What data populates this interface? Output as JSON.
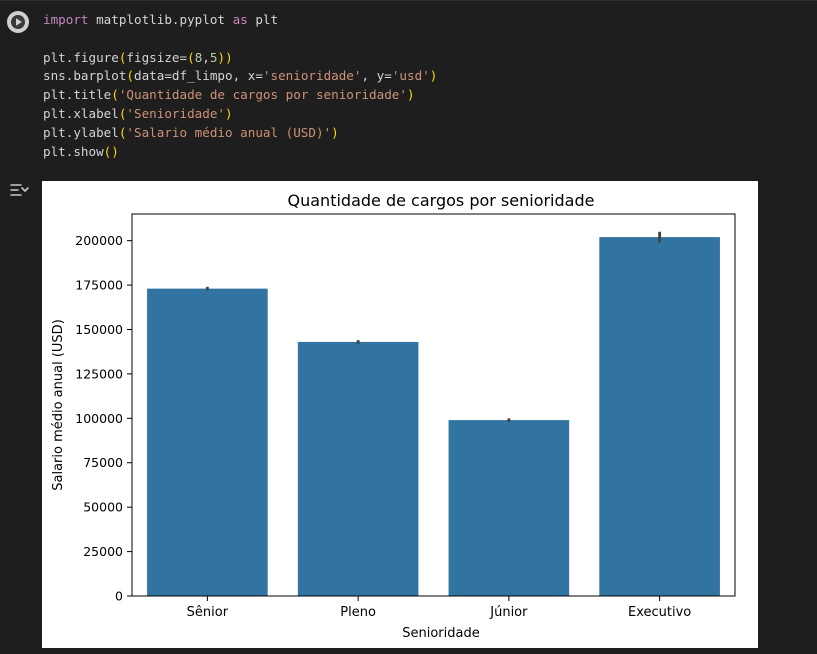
{
  "code_cell": {
    "lines": [
      [
        {
          "t": "import",
          "c": "kw"
        },
        {
          "t": " matplotlib.pyplot "
        },
        {
          "t": "as",
          "c": "kw"
        },
        {
          "t": " plt"
        }
      ],
      [],
      [
        {
          "t": "plt.figure"
        },
        {
          "t": "(",
          "c": "pn"
        },
        {
          "t": "figsize="
        },
        {
          "t": "(",
          "c": "pn"
        },
        {
          "t": "8",
          "c": "num"
        },
        {
          "t": ","
        },
        {
          "t": "5",
          "c": "num"
        },
        {
          "t": ")",
          "c": "pn"
        },
        {
          "t": ")",
          "c": "pn"
        }
      ],
      [
        {
          "t": "sns.barplot"
        },
        {
          "t": "(",
          "c": "pn"
        },
        {
          "t": "data=df_limpo, x="
        },
        {
          "t": "'senioridade'",
          "c": "str"
        },
        {
          "t": ", y="
        },
        {
          "t": "'usd'",
          "c": "str"
        },
        {
          "t": ")",
          "c": "pn"
        }
      ],
      [
        {
          "t": "plt.title"
        },
        {
          "t": "(",
          "c": "pn"
        },
        {
          "t": "'Quantidade de cargos por senioridade'",
          "c": "str"
        },
        {
          "t": ")",
          "c": "pn"
        }
      ],
      [
        {
          "t": "plt.xlabel"
        },
        {
          "t": "(",
          "c": "pn"
        },
        {
          "t": "'Senioridade'",
          "c": "str"
        },
        {
          "t": ")",
          "c": "pn"
        }
      ],
      [
        {
          "t": "plt.ylabel"
        },
        {
          "t": "(",
          "c": "pn"
        },
        {
          "t": "'Salario médio anual (USD)'",
          "c": "str"
        },
        {
          "t": ")",
          "c": "pn"
        }
      ],
      [
        {
          "t": "plt.show"
        },
        {
          "t": "(",
          "c": "pn"
        },
        {
          "t": ")",
          "c": "pn"
        }
      ]
    ],
    "run_icon": "play-circle-icon",
    "output_icon": "output-toggle-icon"
  },
  "colors": {
    "bar": "#3274a1",
    "errorbar": "#424242",
    "background": "#1e1e1e",
    "figure_bg": "#ffffff"
  },
  "chart_data": {
    "type": "bar",
    "title": "Quantidade de cargos por senioridade",
    "xlabel": "Senioridade",
    "ylabel": "Salario médio anual (USD)",
    "categories": [
      "Sênior",
      "Pleno",
      "Júnior",
      "Executivo"
    ],
    "values": [
      173000,
      143000,
      99000,
      202000
    ],
    "error": [
      [
        172000,
        174000
      ],
      [
        142000,
        144000
      ],
      [
        98000,
        100000
      ],
      [
        199000,
        205000
      ]
    ],
    "ylim": [
      0,
      215000
    ],
    "yticks": [
      0,
      25000,
      50000,
      75000,
      100000,
      125000,
      150000,
      175000,
      200000
    ],
    "grid": false
  }
}
